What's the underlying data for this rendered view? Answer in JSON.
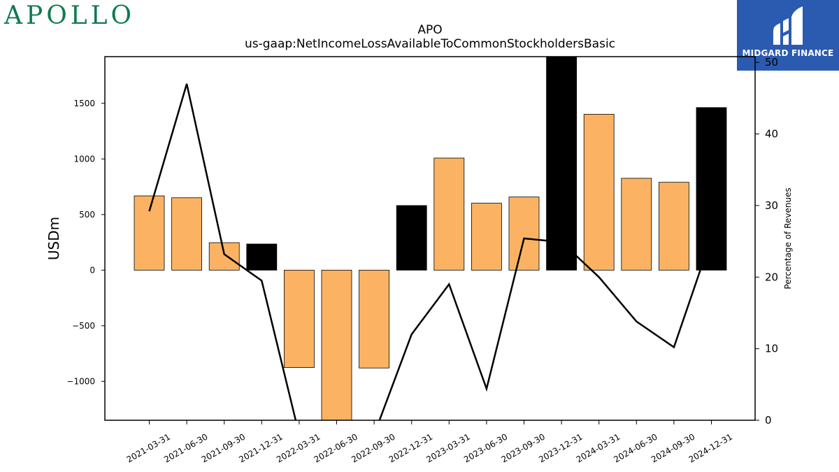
{
  "branding": {
    "company_logo_text": "APOLLO",
    "publisher_name": "MIDGARD FINANCE",
    "publisher_icon": "midgard-finance-logo-icon"
  },
  "colors": {
    "bar_fill": "#fbb363",
    "bar_highlight": "#000000",
    "line": "#000000",
    "logo_green": "#0e7a4f",
    "publisher_bg": "#2b5bb0"
  },
  "chart_data": {
    "type": "bar",
    "title": "APO",
    "subtitle": "us-gaap:NetIncomeLossAvailableToCommonStockholdersBasic",
    "ylabel": "USDm",
    "y2label": "Percentage of Revenues",
    "categories": [
      "2021-03-31",
      "2021-06-30",
      "2021-09-30",
      "2021-12-31",
      "2022-03-31",
      "2022-06-30",
      "2022-09-30",
      "2022-12-31",
      "2023-03-31",
      "2023-06-30",
      "2023-09-30",
      "2023-12-31",
      "2024-03-31",
      "2024-06-30",
      "2024-09-30",
      "2024-12-31"
    ],
    "series": [
      {
        "type": "bar",
        "axis": "left",
        "values": [
          668,
          651,
          247,
          235,
          -876,
          -1400,
          -880,
          581,
          1008,
          602,
          658,
          1920,
          1402,
          826,
          790,
          1462
        ],
        "highlighted": [
          false,
          false,
          false,
          true,
          false,
          false,
          false,
          true,
          false,
          false,
          false,
          true,
          false,
          false,
          false,
          true
        ]
      },
      {
        "type": "line",
        "axis": "right",
        "values": [
          29.2,
          47.0,
          23.2,
          19.5,
          -2.0,
          null,
          -2.0,
          12.0,
          19.0,
          4.4,
          25.4,
          24.9,
          20.0,
          13.8,
          10.2,
          25.5
        ]
      }
    ],
    "ylim": [
      -1350,
      1920
    ],
    "y2lim": [
      0,
      50.8
    ],
    "yticks": [
      -1000,
      -500,
      0,
      500,
      1000,
      1500
    ],
    "ytick_labels": [
      "−1000",
      "−500",
      "0",
      "500",
      "1000",
      "1500"
    ],
    "y2ticks": [
      0,
      10,
      20,
      30,
      40,
      50
    ],
    "y2tick_labels": [
      "0",
      "10",
      "20",
      "30",
      "40",
      "50"
    ],
    "grid": false
  }
}
